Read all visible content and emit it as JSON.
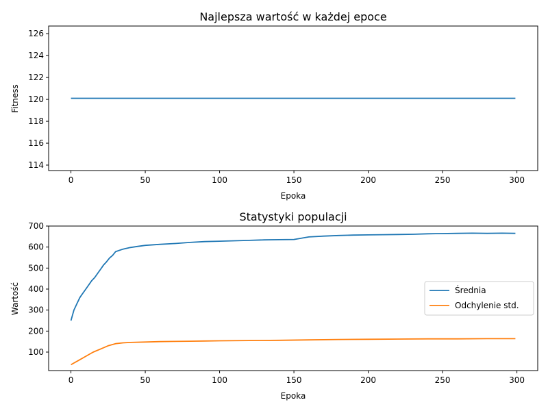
{
  "chart_data": [
    {
      "type": "line",
      "title": "Najlepsza wartość w każdej epoce",
      "xlabel": "Epoka",
      "ylabel": "Fitness",
      "xlim": [
        -15,
        314
      ],
      "ylim": [
        113.5,
        126.7
      ],
      "xticks": [
        0,
        50,
        100,
        150,
        200,
        250,
        300
      ],
      "yticks": [
        114,
        116,
        118,
        120,
        122,
        124,
        126
      ],
      "grid": false,
      "series": [
        {
          "name": "",
          "color": "#1f77b4",
          "x": [
            0,
            299
          ],
          "y": [
            120.1,
            120.1
          ]
        }
      ]
    },
    {
      "type": "line",
      "title": "Statystyki populacji",
      "xlabel": "Epoka",
      "ylabel": "Wartość",
      "xlim": [
        -15,
        314
      ],
      "ylim": [
        12,
        700
      ],
      "xticks": [
        0,
        50,
        100,
        150,
        200,
        250,
        300
      ],
      "yticks": [
        100,
        200,
        300,
        400,
        500,
        600,
        700
      ],
      "grid": false,
      "legend": "center-right",
      "series": [
        {
          "name": "Średnia",
          "color": "#1f77b4",
          "x": [
            0,
            2,
            4,
            6,
            8,
            10,
            12,
            14,
            16,
            18,
            20,
            22,
            24,
            26,
            28,
            30,
            35,
            40,
            45,
            50,
            60,
            70,
            80,
            90,
            100,
            110,
            120,
            130,
            140,
            150,
            160,
            170,
            180,
            190,
            200,
            210,
            220,
            230,
            240,
            250,
            260,
            270,
            280,
            290,
            299
          ],
          "y": [
            250,
            300,
            330,
            360,
            380,
            400,
            420,
            440,
            455,
            475,
            495,
            515,
            530,
            548,
            560,
            578,
            590,
            598,
            603,
            608,
            613,
            617,
            622,
            626,
            628,
            630,
            632,
            634,
            635,
            636,
            648,
            652,
            655,
            657,
            658,
            659,
            660,
            661,
            663,
            664,
            665,
            666,
            665,
            666,
            665
          ]
        },
        {
          "name": "Odchylenie std.",
          "color": "#ff7f0e",
          "x": [
            0,
            5,
            10,
            15,
            20,
            25,
            30,
            35,
            40,
            50,
            60,
            70,
            80,
            90,
            100,
            120,
            140,
            160,
            180,
            200,
            220,
            240,
            260,
            280,
            299
          ],
          "y": [
            40,
            60,
            80,
            100,
            115,
            130,
            140,
            144,
            146,
            148,
            150,
            151,
            152,
            153,
            154,
            155,
            156,
            158,
            160,
            161,
            162,
            163,
            163,
            164,
            164
          ]
        }
      ]
    }
  ]
}
